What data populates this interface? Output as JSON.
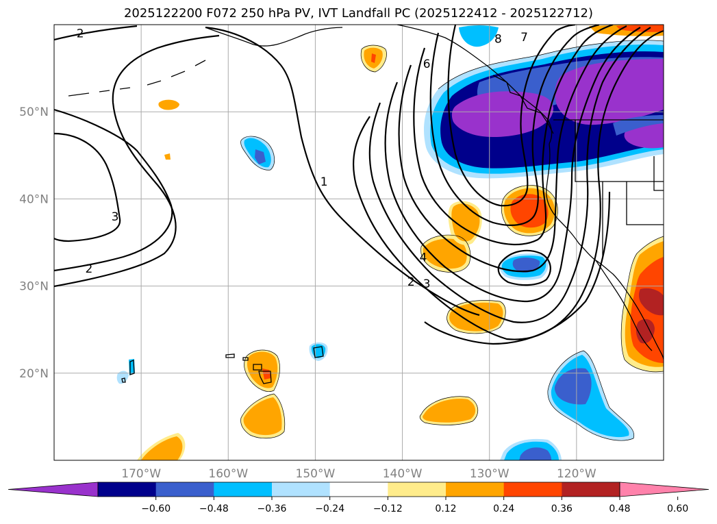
{
  "title": "2025122200 F072 250 hPa PV, IVT Landfall PC (2025122412 - 2025122712)",
  "map": {
    "projection": "cylindrical",
    "lon_range": [
      -180,
      -110
    ],
    "lat_range": [
      10,
      60
    ],
    "gridlines": true,
    "lat_labels": [
      {
        "lat": 50,
        "text": "50°N"
      },
      {
        "lat": 40,
        "text": "40°N"
      },
      {
        "lat": 30,
        "text": "30°N"
      },
      {
        "lat": 20,
        "text": "20°N"
      }
    ],
    "lon_labels": [
      {
        "lon": -170,
        "text": "170°W"
      },
      {
        "lon": -160,
        "text": "160°W"
      },
      {
        "lon": -150,
        "text": "150°W"
      },
      {
        "lon": -140,
        "text": "140°W"
      },
      {
        "lon": -130,
        "text": "130°W"
      },
      {
        "lon": -120,
        "text": "120°W"
      }
    ]
  },
  "pv_contour_labels": [
    {
      "text": "2",
      "lon": -177,
      "lat": 59
    },
    {
      "text": "3",
      "lon": -173,
      "lat": 38
    },
    {
      "text": "2",
      "lon": -176,
      "lat": 32
    },
    {
      "text": "1",
      "lon": -149,
      "lat": 42
    },
    {
      "text": "2",
      "lon": -139,
      "lat": 30.5
    },
    {
      "text": "3",
      "lon": -137.2,
      "lat": 30.3
    },
    {
      "text": "4",
      "lon": -137.6,
      "lat": 33.3
    },
    {
      "text": "6",
      "lon": -137.2,
      "lat": 55.5
    },
    {
      "text": "8",
      "lon": -129,
      "lat": 58.4
    },
    {
      "text": "7",
      "lon": -126,
      "lat": 58.6
    }
  ],
  "colorbar": {
    "ticks": [
      "−0.60",
      "−0.48",
      "−0.36",
      "−0.24",
      "−0.12",
      "0.12",
      "0.24",
      "0.36",
      "0.48",
      "0.60"
    ],
    "colors": [
      "#9932cc",
      "#00008b",
      "#3a5fcd",
      "#00bfff",
      "#b0e2ff",
      "#ffffff",
      "#ffec8b",
      "#ffa500",
      "#ff4500",
      "#b22222",
      "#ff82ab"
    ],
    "extend": "both"
  }
}
